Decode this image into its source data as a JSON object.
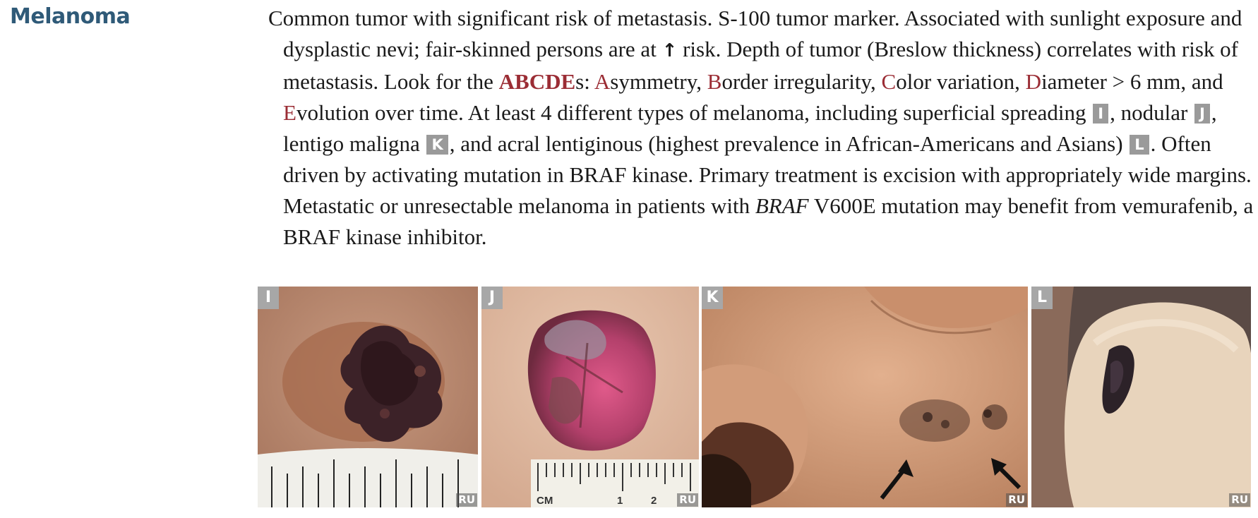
{
  "heading": "Melanoma",
  "text": {
    "s1": "Common tumor with significant risk of metastasis. S-100 tumor marker. Associated with sunlight exposure and dysplastic nevi; fair-skinned persons are at ",
    "up_arrow": "↑",
    "s2": " risk. Depth of tumor (Breslow thickness) correlates with risk of metastasis. Look for the ",
    "abcde": "ABCDE",
    "s3": "s: ",
    "a": "A",
    "a_rest": "symmetry, ",
    "b": "B",
    "b_rest": "order irregularity, ",
    "c": "C",
    "c_rest": "olor variation, ",
    "d": "D",
    "d_rest": "iameter > 6 mm, and ",
    "e": "E",
    "e_rest": "volution over time. At least 4 different types of melanoma, including superficial spreading ",
    "ref_i": "I",
    "s4": ", nodular ",
    "ref_j": "J",
    "s5": ", lentigo maligna ",
    "ref_k": "K",
    "s6": ", and acral lentiginous (highest prevalence in African-Americans and Asians) ",
    "ref_l": "L",
    "s7": ". Often driven by activating mutation in BRAF kinase. Primary treatment is excision with appropriately wide margins. Metastatic or unresectable melanoma in patients with ",
    "braf_italic": "BRAF",
    "s8": " V600E mutation may benefit from vemurafenib, a BRAF kinase inhibitor."
  },
  "images": [
    {
      "label": "I",
      "credit": "RU",
      "ruler_labels": []
    },
    {
      "label": "J",
      "credit": "RU",
      "ruler_labels": [
        "CM",
        "1",
        "2"
      ]
    },
    {
      "label": "K",
      "credit": "RU",
      "ruler_labels": []
    },
    {
      "label": "L",
      "credit": "RU",
      "ruler_labels": []
    }
  ],
  "colors": {
    "heading": "#2f5a78",
    "highlight": "#9b2d35",
    "ref_badge": "#9a9a9a"
  }
}
